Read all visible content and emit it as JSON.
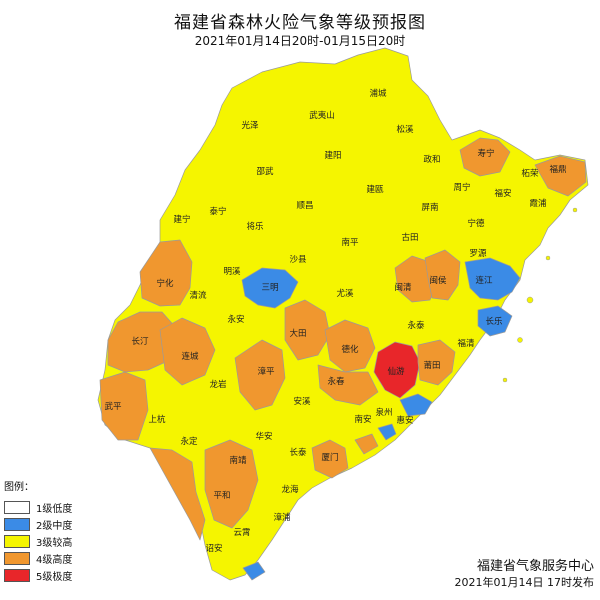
{
  "header": {
    "title": "福建省森林火险气象等级预报图",
    "subtitle": "2021年01月14日20时-01月15日20时"
  },
  "colors": {
    "level1": "#ffffff",
    "level2": "#3b8be6",
    "level3": "#f5f500",
    "level4": "#f0972f",
    "level5": "#e8262a",
    "border": "#9a9a9a",
    "sea": "#ffffff"
  },
  "legend": {
    "title": "图例：",
    "items": [
      {
        "label": "1级低度",
        "color": "#ffffff"
      },
      {
        "label": "2级中度",
        "color": "#3b8be6"
      },
      {
        "label": "3级较高",
        "color": "#f5f500"
      },
      {
        "label": "4级高度",
        "color": "#f0972f"
      },
      {
        "label": "5级极度",
        "color": "#e8262a"
      }
    ]
  },
  "counties": {
    "puchen": "浦城",
    "guangze": "光泽",
    "wuyishan": "武夷山",
    "songxi": "松溪",
    "zhenghe": "政和",
    "shouning": "寿宁",
    "zherong": "柘荣",
    "fuding": "福鼎",
    "shaowu": "邵武",
    "jianyang": "建阳",
    "jianou": "建瓯",
    "pingnan": "屏南",
    "zhouning": "周宁",
    "fuan": "福安",
    "xiapu": "霞浦",
    "shunchang": "顺昌",
    "taining": "泰宁",
    "jianning": "建宁",
    "jiangle": "将乐",
    "nanping": "南平",
    "gutian": "古田",
    "ningde": "宁德",
    "luoyuan": "罗源",
    "lianjiang": "连江",
    "minqing": "闽清",
    "minhou": "闽侯",
    "shaxian": "沙县",
    "sanming": "三明",
    "mingxi": "明溪",
    "ninghua": "宁化",
    "qingliu": "清流",
    "youxi": "尤溪",
    "yongtai": "永泰",
    "changle": "长乐",
    "fuqing": "福清",
    "yongan": "永安",
    "datian": "大田",
    "dehua": "德化",
    "changting": "长汀",
    "liancheng": "连城",
    "putian": "莆田",
    "xianyou": "仙游",
    "zhangping": "漳平",
    "yongchun": "永春",
    "longyan": "龙岩",
    "shanghang": "上杭",
    "wuping": "武平",
    "yongding": "永定",
    "anxi": "安溪",
    "nanan": "南安",
    "huian": "惠安",
    "quanzhou": "泉州",
    "huaan": "华安",
    "changtai": "长泰",
    "xiamen": "厦门",
    "nanjing": "南靖",
    "longhai": "龙海",
    "pinghe": "平和",
    "zhangpu": "漳浦",
    "yunxiao": "云霄",
    "zhaoan": "诏安"
  },
  "footer": {
    "issuer": "福建省气象服务中心",
    "issued": "2021年01月14日 17时发布"
  }
}
